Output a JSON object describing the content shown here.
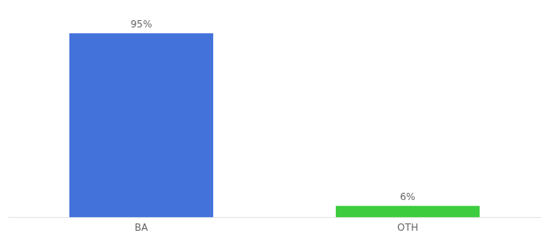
{
  "chart_data": {
    "type": "bar",
    "categories": [
      "BA",
      "OTH"
    ],
    "values": [
      95,
      6
    ],
    "value_labels": [
      "95%",
      "6%"
    ],
    "colors": [
      "#4472db",
      "#3dcc3d"
    ],
    "ylim": [
      0,
      108
    ],
    "grid": false,
    "data_labels": true,
    "tick_labels": "x"
  }
}
